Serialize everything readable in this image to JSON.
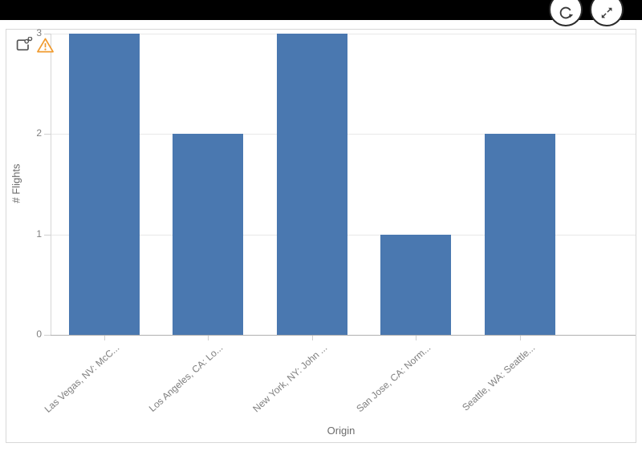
{
  "header": {
    "buttons": [
      {
        "name": "refresh",
        "icon": "circular-arrow-icon"
      },
      {
        "name": "expand",
        "icon": "diagonal-expand-icon"
      }
    ]
  },
  "chart_widget": {
    "corner_icons": [
      {
        "name": "share-chart",
        "icon": "link-square-icon"
      },
      {
        "name": "warning",
        "icon": "warning-triangle-icon",
        "color": "#f09a2e"
      }
    ]
  },
  "chart_data": {
    "type": "bar",
    "title": "",
    "categories": [
      "Las Vegas, NV: McC...",
      "Los Angeles, CA: Lo...",
      "New York, NY: John ...",
      "San Jose, CA: Norm...",
      "Seattle, WA: Seattle..."
    ],
    "values": [
      3,
      2,
      3,
      1,
      2
    ],
    "xlabel": "Origin",
    "ylabel": "# Flights",
    "ylim": [
      0,
      3
    ],
    "yticks": [
      0,
      1,
      2,
      3
    ],
    "grid": true,
    "legend": false,
    "bar_color": "#4a78b0"
  }
}
